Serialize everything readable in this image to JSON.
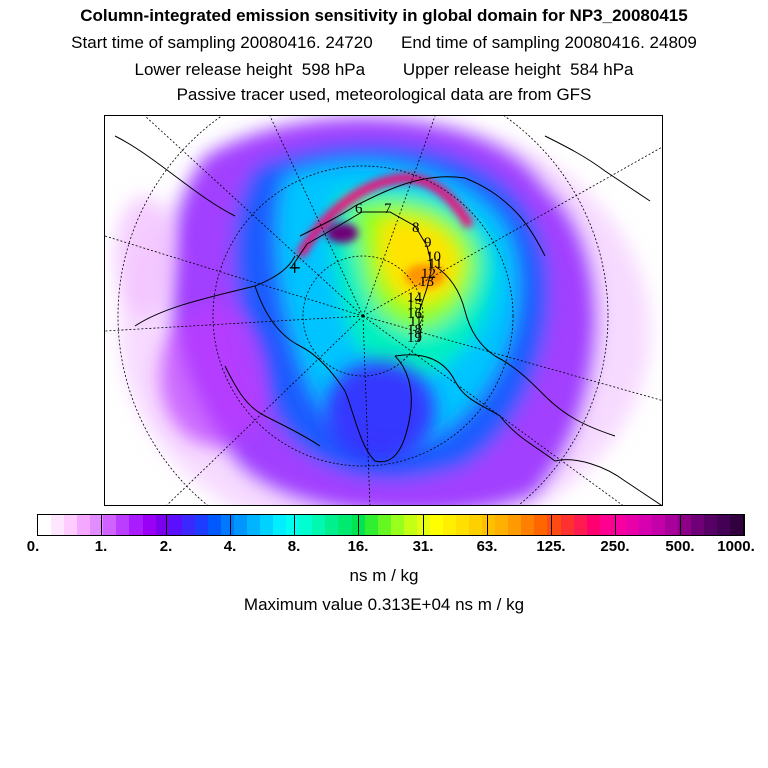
{
  "header": {
    "title": "Column-integrated emission sensitivity in global domain for NP3_20080415",
    "sampling_line": "Start time of sampling 20080416. 24720      End time of sampling 20080416. 24809",
    "height_line": "Lower release height  598 hPa        Upper release height  584 hPa",
    "tracer_line": "Passive tracer used, meteorological data are from GFS"
  },
  "map": {
    "projection": "north polar stereographic",
    "release_marker": "+",
    "trajectory_labels": [
      "6",
      "7",
      "8",
      "9",
      "10",
      "11",
      "12",
      "13",
      "14",
      "15",
      "16",
      "17",
      "18",
      "19"
    ],
    "colors": {
      "coast": "#000000",
      "graticule": "#000000",
      "track": "#000000"
    }
  },
  "colorbar": {
    "labels": [
      "0.",
      "1.",
      "2.",
      "4.",
      "8.",
      "16.",
      "31.",
      "63.",
      "125.",
      "250.",
      "500.",
      "1000."
    ],
    "colors": [
      "#ffffff",
      "#ffe6ff",
      "#ffccff",
      "#f5a8ff",
      "#e38cff",
      "#d062ff",
      "#bb3dff",
      "#a81cff",
      "#9a00f5",
      "#7a00ee",
      "#5a10ff",
      "#3a28ff",
      "#1c3cff",
      "#0058ff",
      "#0078ff",
      "#0096ff",
      "#00b4ff",
      "#00d2ff",
      "#00eeff",
      "#00ffee",
      "#00ffd0",
      "#00f8b0",
      "#00f090",
      "#00ea70",
      "#00e450",
      "#30ee30",
      "#66f622",
      "#99ff1c",
      "#c4ff14",
      "#e6ff10",
      "#ffff00",
      "#fff000",
      "#ffe000",
      "#ffd000",
      "#ffc000",
      "#ffb000",
      "#ff9a00",
      "#ff8000",
      "#ff6600",
      "#ff4a14",
      "#ff3030",
      "#ff1a50",
      "#ff0070",
      "#ff0090",
      "#f700a0",
      "#e800a8",
      "#d600b0",
      "#c400a8",
      "#a8009a",
      "#8c0088",
      "#700078",
      "#560066",
      "#440054",
      "#32003e"
    ],
    "unit": "ns m / kg"
  },
  "max_value_text": "Maximum value  0.313E+04 ns m / kg"
}
